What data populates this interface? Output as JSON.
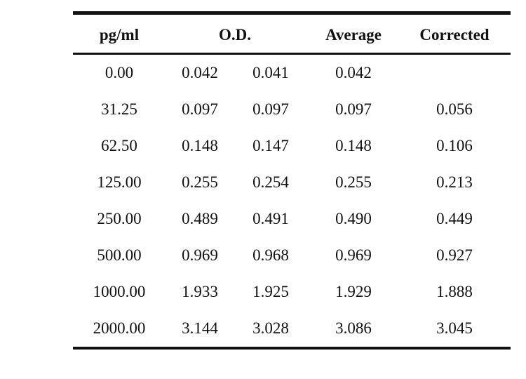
{
  "table": {
    "headers": {
      "concentration": "pg/ml",
      "od": "O.D.",
      "average": "Average",
      "corrected": "Corrected"
    },
    "rows": [
      {
        "concentration": "0.00",
        "od1": "0.042",
        "od2": "0.041",
        "average": "0.042",
        "corrected": ""
      },
      {
        "concentration": "31.25",
        "od1": "0.097",
        "od2": "0.097",
        "average": "0.097",
        "corrected": "0.056"
      },
      {
        "concentration": "62.50",
        "od1": "0.148",
        "od2": "0.147",
        "average": "0.148",
        "corrected": "0.106"
      },
      {
        "concentration": "125.00",
        "od1": "0.255",
        "od2": "0.254",
        "average": "0.255",
        "corrected": "0.213"
      },
      {
        "concentration": "250.00",
        "od1": "0.489",
        "od2": "0.491",
        "average": "0.490",
        "corrected": "0.449"
      },
      {
        "concentration": "500.00",
        "od1": "0.969",
        "od2": "0.968",
        "average": "0.969",
        "corrected": "0.927"
      },
      {
        "concentration": "1000.00",
        "od1": "1.933",
        "od2": "1.925",
        "average": "1.929",
        "corrected": "1.888"
      },
      {
        "concentration": "2000.00",
        "od1": "3.144",
        "od2": "3.028",
        "average": "3.086",
        "corrected": "3.045"
      }
    ]
  }
}
